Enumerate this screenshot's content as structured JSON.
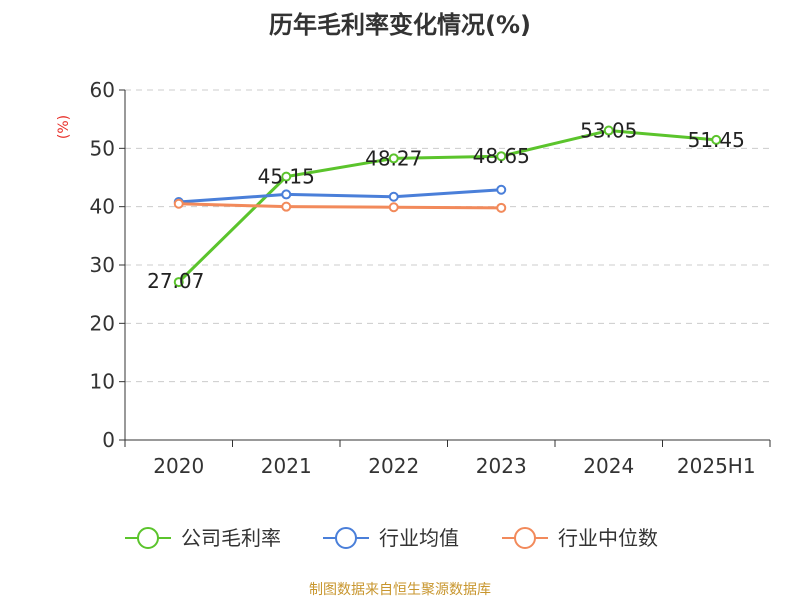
{
  "chart_data": {
    "type": "line",
    "title": "历年毛利率变化情况(%)",
    "unit_label": "(%)",
    "categories": [
      "2020",
      "2021",
      "2022",
      "2023",
      "2024",
      "2025H1"
    ],
    "ylim": [
      0,
      60
    ],
    "yticks": [
      0,
      10,
      20,
      30,
      40,
      50,
      60
    ],
    "grid": true,
    "legend_position": "bottom",
    "series": [
      {
        "name": "公司毛利率",
        "color": "#5bc42c",
        "values": [
          27.07,
          45.15,
          48.27,
          48.65,
          53.05,
          51.45
        ],
        "labels": [
          "27.07",
          "45.15",
          "48.27",
          "48.65",
          "53.05",
          "51.45"
        ]
      },
      {
        "name": "行业均值",
        "color": "#4a7fd9",
        "values": [
          40.8,
          42.1,
          41.7,
          42.9,
          null,
          null
        ]
      },
      {
        "name": "行业中位数",
        "color": "#f28a5b",
        "values": [
          40.5,
          40.0,
          39.9,
          39.8,
          null,
          null
        ]
      }
    ],
    "source": "制图数据来自恒生聚源数据库"
  }
}
